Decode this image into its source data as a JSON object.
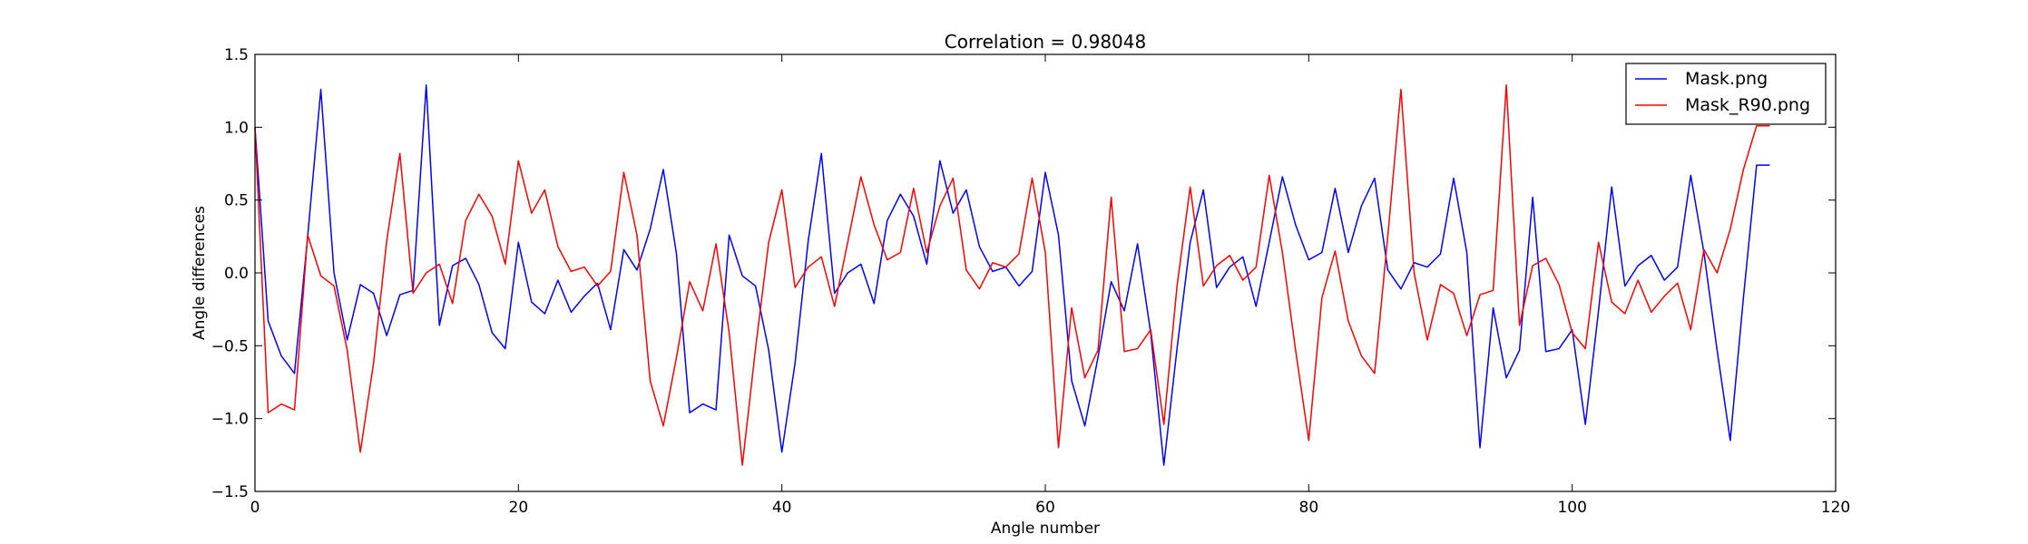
{
  "chart_data": {
    "type": "line",
    "title": "Correlation = 0.98048",
    "xlabel": "Angle number",
    "ylabel": "Angle differences",
    "xlim": [
      0,
      120
    ],
    "ylim": [
      -1.5,
      1.5
    ],
    "xticks": [
      0,
      20,
      40,
      60,
      80,
      100,
      120
    ],
    "yticks": [
      -1.5,
      -1.0,
      -0.5,
      0.0,
      0.5,
      1.0,
      1.5
    ],
    "grid": false,
    "legend_position": "top-right",
    "series": [
      {
        "name": "Mask.png",
        "color": "#0000ff",
        "values": [
          1.0,
          -0.33,
          -0.57,
          -0.69,
          0.25,
          1.26,
          0.0,
          -0.46,
          -0.08,
          -0.14,
          -0.43,
          -0.15,
          -0.12,
          1.29,
          -0.36,
          0.05,
          0.1,
          -0.08,
          -0.41,
          -0.52,
          0.21,
          -0.2,
          -0.28,
          -0.05,
          -0.27,
          -0.16,
          -0.07,
          -0.39,
          0.16,
          0.02,
          0.3,
          0.71,
          0.13,
          -0.96,
          -0.9,
          -0.94,
          0.26,
          -0.02,
          -0.09,
          -0.53,
          -1.23,
          -0.62,
          0.22,
          0.82,
          -0.14,
          0.0,
          0.06,
          -0.21,
          0.36,
          0.54,
          0.39,
          0.06,
          0.77,
          0.41,
          0.57,
          0.18,
          0.01,
          0.04,
          -0.09,
          0.01,
          0.69,
          0.26,
          -0.74,
          -1.05,
          -0.58,
          -0.06,
          -0.26,
          0.2,
          -0.41,
          -1.32,
          -0.52,
          0.21,
          0.57,
          -0.1,
          0.04,
          0.11,
          -0.23,
          0.21,
          0.66,
          0.33,
          0.09,
          0.14,
          0.58,
          0.14,
          0.46,
          0.65,
          0.02,
          -0.11,
          0.07,
          0.04,
          0.13,
          0.65,
          0.14,
          -1.2,
          -0.24,
          -0.72,
          -0.53,
          0.52,
          -0.54,
          -0.52,
          -0.39,
          -1.04,
          -0.26,
          0.59,
          -0.09,
          0.05,
          0.12,
          -0.05,
          0.04,
          0.67,
          0.14,
          -0.53,
          -1.15,
          -0.17,
          0.74,
          0.74
        ]
      },
      {
        "name": "Mask_R90.png",
        "color": "#ff0000",
        "values": [
          1.0,
          -0.96,
          -0.9,
          -0.94,
          0.26,
          -0.02,
          -0.09,
          -0.53,
          -1.23,
          -0.62,
          0.22,
          0.82,
          -0.14,
          0.0,
          0.06,
          -0.21,
          0.36,
          0.54,
          0.39,
          0.06,
          0.77,
          0.41,
          0.57,
          0.18,
          0.01,
          0.04,
          -0.09,
          0.01,
          0.69,
          0.26,
          -0.74,
          -1.05,
          -0.58,
          -0.06,
          -0.26,
          0.2,
          -0.41,
          -1.32,
          -0.52,
          0.21,
          0.57,
          -0.1,
          0.04,
          0.11,
          -0.23,
          0.21,
          0.66,
          0.33,
          0.09,
          0.14,
          0.58,
          0.14,
          0.46,
          0.65,
          0.02,
          -0.11,
          0.07,
          0.04,
          0.13,
          0.65,
          0.14,
          -1.2,
          -0.24,
          -0.72,
          -0.53,
          0.52,
          -0.54,
          -0.52,
          -0.39,
          -1.04,
          -0.09,
          0.59,
          -0.09,
          0.05,
          0.12,
          -0.05,
          0.04,
          0.67,
          0.14,
          -0.53,
          -1.15,
          -0.17,
          0.15,
          -0.33,
          -0.57,
          -0.69,
          0.25,
          1.26,
          0.0,
          -0.46,
          -0.08,
          -0.14,
          -0.43,
          -0.15,
          -0.12,
          1.29,
          -0.36,
          0.05,
          0.1,
          -0.08,
          -0.41,
          -0.52,
          0.21,
          -0.2,
          -0.28,
          -0.05,
          -0.27,
          -0.16,
          -0.07,
          -0.39,
          0.16,
          0.0,
          0.3,
          0.71,
          1.01,
          1.01
        ]
      }
    ]
  }
}
